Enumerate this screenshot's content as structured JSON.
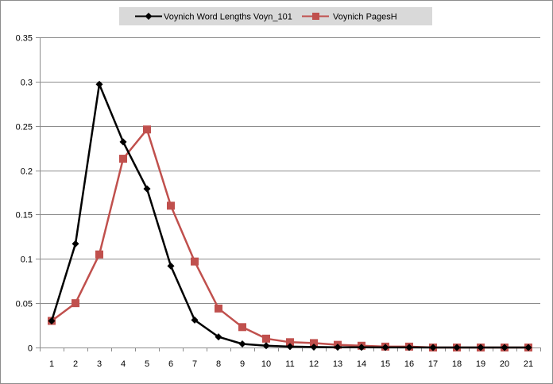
{
  "chart_data": {
    "type": "line",
    "title": "",
    "xlabel": "",
    "ylabel": "",
    "x": [
      1,
      2,
      3,
      4,
      5,
      6,
      7,
      8,
      9,
      10,
      11,
      12,
      13,
      14,
      15,
      16,
      17,
      18,
      19,
      20,
      21
    ],
    "ylim": [
      0,
      0.35
    ],
    "yticks": [
      "0",
      "0.05",
      "0.1",
      "0.15",
      "0.2",
      "0.25",
      "0.3",
      "0.35"
    ],
    "ytick_values": [
      0,
      0.05,
      0.1,
      0.15,
      0.2,
      0.25,
      0.3,
      0.35
    ],
    "grid": true,
    "legend_position": "top",
    "series": [
      {
        "name": "Voynich Word Lengths Voyn_101",
        "color": "#000000",
        "marker": "diamond",
        "values": [
          0.03,
          0.117,
          0.297,
          0.232,
          0.179,
          0.092,
          0.031,
          0.012,
          0.004,
          0.002,
          0.001,
          0.0005,
          0.0003,
          0.0002,
          0.0001,
          0.0001,
          0,
          0,
          0,
          0,
          0
        ]
      },
      {
        "name": "Voynich PagesH",
        "color": "#c0504d",
        "marker": "square",
        "values": [
          0.03,
          0.05,
          0.105,
          0.213,
          0.246,
          0.16,
          0.097,
          0.044,
          0.023,
          0.01,
          0.006,
          0.005,
          0.003,
          0.002,
          0.001,
          0.001,
          0,
          0,
          0,
          0,
          0
        ]
      }
    ]
  }
}
